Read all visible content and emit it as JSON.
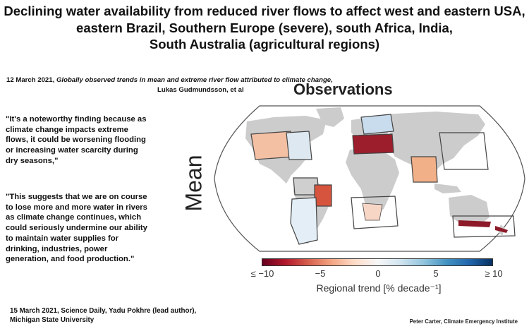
{
  "title_lines": [
    "Declining water availability from reduced river flows to affect west and eastern USA,",
    "eastern Brazil, Southern Europe (severe), south Africa, India,",
    "South Australia (agricultural regions)"
  ],
  "citation": {
    "date": "12 March 2021,",
    "paper_title": "Globally observed trends in mean and extreme river flow attributed to climate change,",
    "authors": "Lukas  Gudmundsson, et al"
  },
  "quote1": "\"It's a noteworthy finding because as climate change impacts extreme flows, it could be worsening flooding or increasing water scarcity during dry seasons,\"",
  "quote2": "\"This suggests that we are on course to lose more and more water in rivers as climate change continues, which could seriously undermine our ability to maintain water supplies for drinking, industries, power generation, and food production.\"",
  "source2": [
    "15 March 2021, Science Daily, Yadu Pokhre (lead author),",
    "Michigan State University"
  ],
  "credit": "Peter Carter, Climate Emergency Institute",
  "figure": {
    "panel_title": "Observations",
    "row_label": "Mean",
    "colorbar": {
      "ticks": [
        "≤ −10",
        "−5",
        "0",
        "5",
        "≥ 10"
      ],
      "label": "Regional trend [% decade⁻¹]",
      "colors": [
        "#67001f",
        "#b2182b",
        "#f4a582",
        "#f7f7f7",
        "#92c5de",
        "#2166ac",
        "#053061"
      ]
    }
  }
}
